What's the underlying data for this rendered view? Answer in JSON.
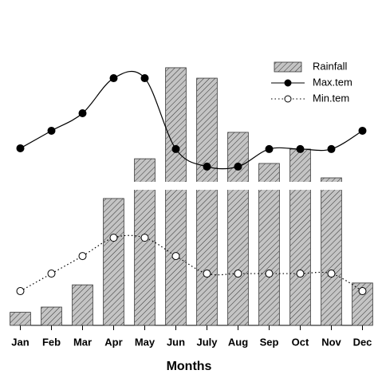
{
  "chart_data": {
    "type": "bar",
    "x_label": "Months",
    "categories": [
      "Jan",
      "Feb",
      "Mar",
      "Apr",
      "May",
      "Jun",
      "July",
      "Aug",
      "Sep",
      "Oct",
      "Nov",
      "Dec"
    ],
    "ylim": [
      0,
      100
    ],
    "series": [
      {
        "name": "Rainfall",
        "type": "bar",
        "color": "#c4c4c4",
        "values": [
          5,
          7,
          15.5,
          48.5,
          63.7,
          98.5,
          94.5,
          73.8,
          61.9,
          67.4,
          56.4,
          16.2
        ]
      },
      {
        "name": "Max.tem",
        "type": "line",
        "color": "#000000",
        "line_style": "solid",
        "marker": "filled",
        "values": [
          67.7,
          74.4,
          81.1,
          94.5,
          94.5,
          67.4,
          60.7,
          60.7,
          67.4,
          67.4,
          67.4,
          74.4
        ]
      },
      {
        "name": "Min.tem",
        "type": "line",
        "color": "#000000",
        "line_style": "dotted",
        "marker": "open",
        "values": [
          13.1,
          19.8,
          26.5,
          33.5,
          33.5,
          26.5,
          19.8,
          19.8,
          19.8,
          19.8,
          19.8,
          13.1
        ]
      }
    ],
    "legend": "top-right"
  }
}
